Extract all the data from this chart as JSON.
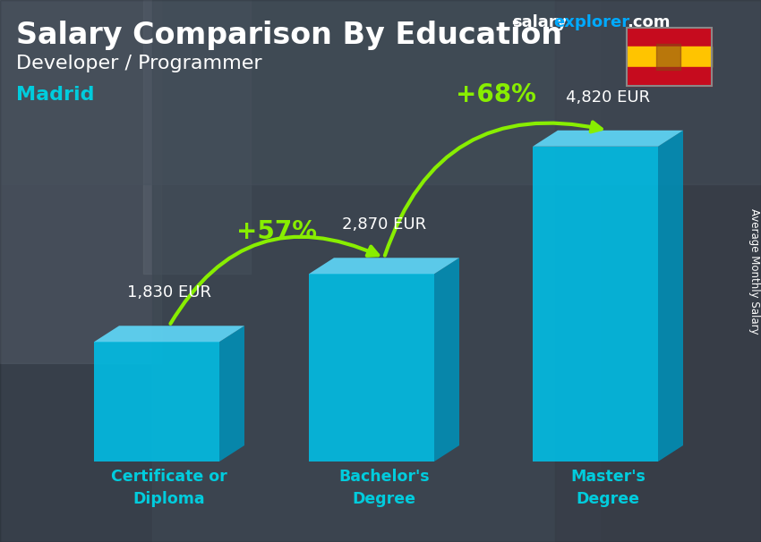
{
  "title_salary": "Salary Comparison By Education",
  "subtitle_job": "Developer / Programmer",
  "subtitle_city": "Madrid",
  "site_salary_text": "salary",
  "site_explorer_text": "explorer",
  "site_dot_com": ".com",
  "ylabel": "Average Monthly Salary",
  "categories": [
    "Certificate or\nDiploma",
    "Bachelor's\nDegree",
    "Master's\nDegree"
  ],
  "values": [
    1830,
    2870,
    4820
  ],
  "value_labels": [
    "1,830 EUR",
    "2,870 EUR",
    "4,820 EUR"
  ],
  "pct_labels": [
    "+57%",
    "+68%"
  ],
  "bar_color_front": "#00c0e8",
  "bar_color_top": "#60ddff",
  "bar_color_side": "#0090b8",
  "bar_color_inner": "#0088bb",
  "title_color": "#ffffff",
  "subtitle_job_color": "#ffffff",
  "subtitle_city_color": "#00ccdd",
  "value_label_color": "#ffffff",
  "pct_color": "#88ee00",
  "xlabel_color": "#00ccdd",
  "site_salary_color": "#ffffff",
  "site_explorer_color": "#00aaff",
  "site_com_color": "#ffffff",
  "arrow_color": "#88ee00",
  "bg_color": "#4a5a6a",
  "figsize": [
    8.5,
    6.06
  ],
  "dpi": 100
}
